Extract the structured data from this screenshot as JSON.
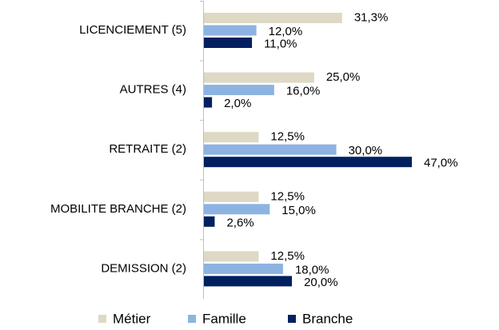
{
  "chart_data": {
    "type": "bar",
    "orientation": "horizontal",
    "categories": [
      "LICENCIEMENT (5)",
      "AUTRES (4)",
      "RETRAITE (2)",
      "MOBILITE BRANCHE (2)",
      "DEMISSION (2)"
    ],
    "series": [
      {
        "name": "Métier",
        "color": "#ddd9c4",
        "values": [
          31.3,
          25.0,
          12.5,
          12.5,
          12.5
        ],
        "value_labels": [
          "31,3%",
          "25,0%",
          "12,5%",
          "12,5%",
          "12,5%"
        ]
      },
      {
        "name": "Famille",
        "color": "#8db3e2",
        "values": [
          12.0,
          16.0,
          30.0,
          15.0,
          18.0
        ],
        "value_labels": [
          "12,0%",
          "16,0%",
          "30,0%",
          "15,0%",
          "18,0%"
        ]
      },
      {
        "name": "Branche",
        "color": "#002060",
        "values": [
          11.0,
          2.0,
          47.0,
          2.6,
          20.0
        ],
        "value_labels": [
          "11,0%",
          "2,0%",
          "47,0%",
          "2,6%",
          "20,0%"
        ]
      }
    ],
    "legend": "bottom"
  }
}
